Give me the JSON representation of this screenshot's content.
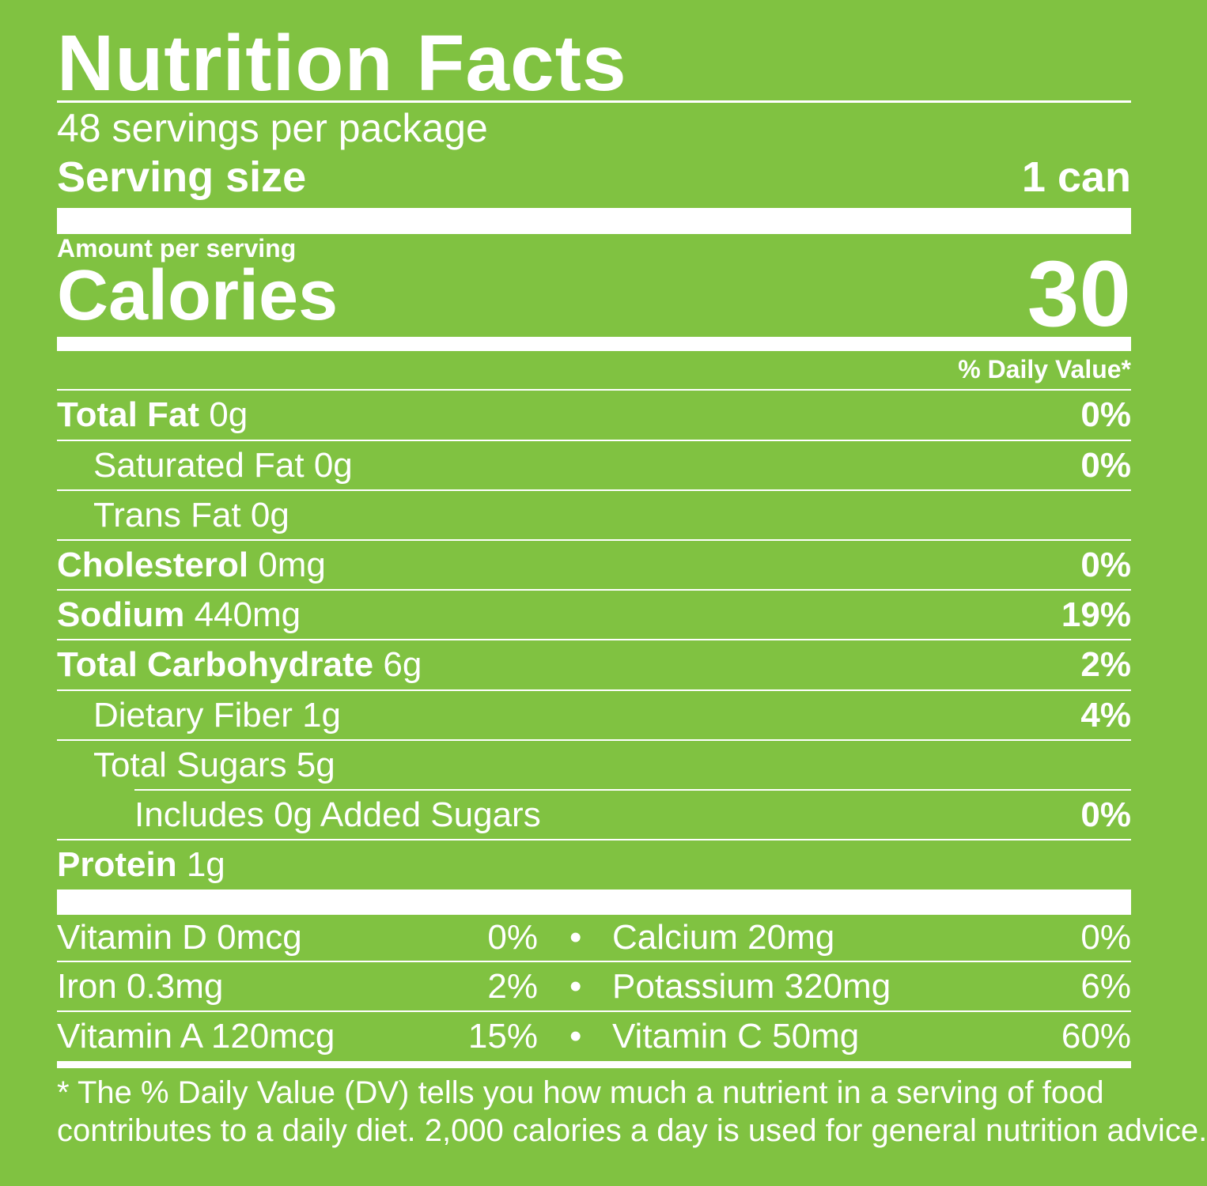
{
  "title": "Nutrition Facts",
  "servings_per_package": "48 servings per package",
  "serving_size": {
    "label": "Serving size",
    "value": "1 can"
  },
  "amount_per_serving": "Amount per serving",
  "calories": {
    "label": "Calories",
    "value": "30"
  },
  "daily_value_header": "% Daily Value*",
  "nutrients": [
    {
      "name": "Total Fat",
      "amount": "0g",
      "dv": "0%"
    },
    {
      "name": "Saturated Fat 0g",
      "amount": "",
      "dv": "0%"
    },
    {
      "name": "Trans Fat 0g",
      "amount": "",
      "dv": ""
    },
    {
      "name": "Cholesterol",
      "amount": "0mg",
      "dv": "0%"
    },
    {
      "name": "Sodium",
      "amount": "440mg",
      "dv": "19%"
    },
    {
      "name": "Total Carbohydrate",
      "amount": "6g",
      "dv": "2%"
    },
    {
      "name": "Dietary Fiber 1g",
      "amount": "",
      "dv": "4%"
    },
    {
      "name": "Total Sugars 5g",
      "amount": "",
      "dv": ""
    },
    {
      "name": "Includes 0g Added Sugars",
      "amount": "",
      "dv": "0%"
    },
    {
      "name": "Protein",
      "amount": "1g",
      "dv": ""
    }
  ],
  "vitamins": [
    {
      "left": {
        "name": "Vitamin D 0mcg",
        "dv": "0%"
      },
      "bullet": "•",
      "right": {
        "name": "Calcium 20mg",
        "dv": "0%"
      }
    },
    {
      "left": {
        "name": "Iron 0.3mg",
        "dv": "2%"
      },
      "bullet": "•",
      "right": {
        "name": "Potassium 320mg",
        "dv": "6%"
      }
    },
    {
      "left": {
        "name": "Vitamin A 120mcg",
        "dv": "15%"
      },
      "bullet": "•",
      "right": {
        "name": "Vitamin C 50mg",
        "dv": "60%"
      }
    }
  ],
  "footnote": {
    "line1": "* The % Daily Value (DV) tells you how much a nutrient in a serving of food",
    "line2": "contributes to a daily diet. 2,000 calories a day is used for general nutrition advice."
  },
  "colors": {
    "background": "#80c241",
    "foreground": "#ffffff"
  }
}
